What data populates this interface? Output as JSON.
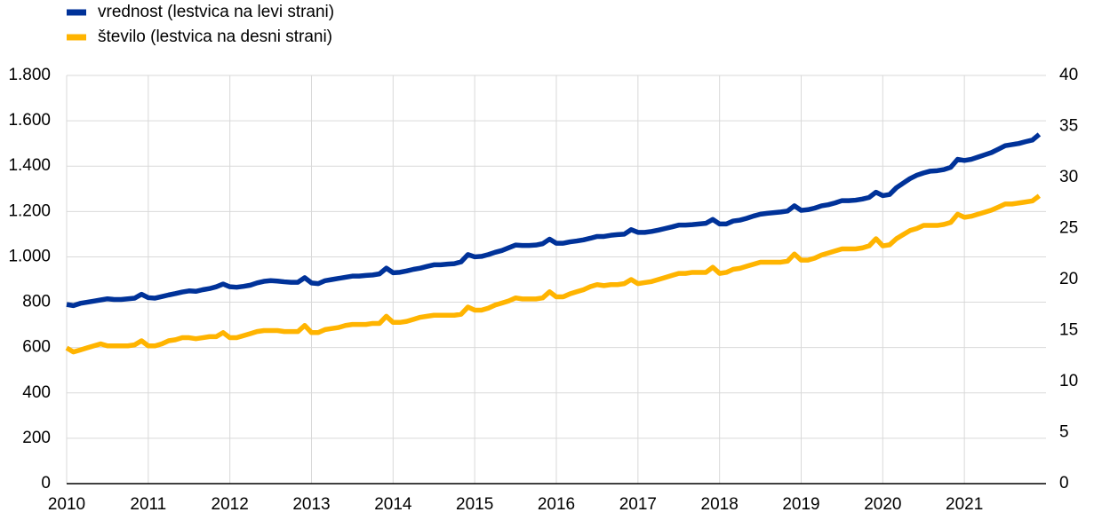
{
  "chart_data": {
    "type": "line",
    "legend": "top-left",
    "grid": true,
    "x": [
      2010,
      2010.083,
      2010.167,
      2010.25,
      2010.333,
      2010.417,
      2010.5,
      2010.583,
      2010.667,
      2010.75,
      2010.833,
      2010.917,
      2011,
      2011.083,
      2011.167,
      2011.25,
      2011.333,
      2011.417,
      2011.5,
      2011.583,
      2011.667,
      2011.75,
      2011.833,
      2011.917,
      2012,
      2012.083,
      2012.167,
      2012.25,
      2012.333,
      2012.417,
      2012.5,
      2012.583,
      2012.667,
      2012.75,
      2012.833,
      2012.917,
      2013,
      2013.083,
      2013.167,
      2013.25,
      2013.333,
      2013.417,
      2013.5,
      2013.583,
      2013.667,
      2013.75,
      2013.833,
      2013.917,
      2014,
      2014.083,
      2014.167,
      2014.25,
      2014.333,
      2014.417,
      2014.5,
      2014.583,
      2014.667,
      2014.75,
      2014.833,
      2014.917,
      2015,
      2015.083,
      2015.167,
      2015.25,
      2015.333,
      2015.417,
      2015.5,
      2015.583,
      2015.667,
      2015.75,
      2015.833,
      2015.917,
      2016,
      2016.083,
      2016.167,
      2016.25,
      2016.333,
      2016.417,
      2016.5,
      2016.583,
      2016.667,
      2016.75,
      2016.833,
      2016.917,
      2017,
      2017.083,
      2017.167,
      2017.25,
      2017.333,
      2017.417,
      2017.5,
      2017.583,
      2017.667,
      2017.75,
      2017.833,
      2017.917,
      2018,
      2018.083,
      2018.167,
      2018.25,
      2018.333,
      2018.417,
      2018.5,
      2018.583,
      2018.667,
      2018.75,
      2018.833,
      2018.917,
      2019,
      2019.083,
      2019.167,
      2019.25,
      2019.333,
      2019.417,
      2019.5,
      2019.583,
      2019.667,
      2019.75,
      2019.833,
      2019.917,
      2020,
      2020.083,
      2020.167,
      2020.25,
      2020.333,
      2020.417,
      2020.5,
      2020.583,
      2020.667,
      2020.75,
      2020.833,
      2020.917,
      2021,
      2021.083,
      2021.167,
      2021.25,
      2021.333,
      2021.417,
      2021.5,
      2021.583,
      2021.667,
      2021.75,
      2021.833,
      2021.917
    ],
    "xlim": [
      2010,
      2022
    ],
    "xticks": [
      2010,
      2011,
      2012,
      2013,
      2014,
      2015,
      2016,
      2017,
      2018,
      2019,
      2020,
      2021
    ],
    "ylim": [
      0,
      1800
    ],
    "yticks": [
      0,
      200,
      400,
      600,
      800,
      {
        "value": 1000,
        "label": "1.000"
      },
      {
        "value": 1200,
        "label": "1.200"
      },
      {
        "value": 1400,
        "label": "1.400"
      },
      {
        "value": 1600,
        "label": "1.600"
      },
      {
        "value": 1800,
        "label": "1.800"
      }
    ],
    "y2lim": [
      0,
      40
    ],
    "y2ticks": [
      0,
      5,
      10,
      15,
      20,
      25,
      30,
      35,
      40
    ],
    "series": [
      {
        "name": "vrednost (lestvica na levi strani)",
        "color": "#003299",
        "values": [
          790,
          785,
          795,
          800,
          805,
          810,
          815,
          812,
          812,
          815,
          818,
          835,
          820,
          818,
          825,
          832,
          838,
          845,
          850,
          848,
          855,
          860,
          868,
          880,
          868,
          866,
          870,
          875,
          885,
          892,
          895,
          893,
          890,
          888,
          888,
          908,
          885,
          882,
          895,
          900,
          905,
          910,
          915,
          915,
          918,
          920,
          925,
          950,
          930,
          932,
          938,
          945,
          950,
          958,
          965,
          965,
          968,
          970,
          978,
          1010,
          1000,
          1002,
          1010,
          1020,
          1028,
          1040,
          1052,
          1050,
          1050,
          1052,
          1058,
          1078,
          1060,
          1060,
          1066,
          1070,
          1075,
          1082,
          1090,
          1090,
          1095,
          1098,
          1100,
          1120,
          1108,
          1108,
          1112,
          1118,
          1125,
          1132,
          1140,
          1140,
          1142,
          1145,
          1148,
          1165,
          1145,
          1145,
          1158,
          1162,
          1170,
          1180,
          1188,
          1192,
          1195,
          1198,
          1202,
          1225,
          1205,
          1208,
          1215,
          1225,
          1230,
          1238,
          1248,
          1248,
          1250,
          1255,
          1262,
          1285,
          1270,
          1275,
          1305,
          1325,
          1345,
          1360,
          1370,
          1378,
          1380,
          1385,
          1395,
          1430,
          1425,
          1430,
          1440,
          1450,
          1460,
          1475,
          1490,
          1495,
          1500,
          1508,
          1515,
          1540
        ]
      },
      {
        "name": "število (lestvica na desni strani)",
        "color": "#ffb400",
        "axis": "y2",
        "values": [
          13.3,
          12.9,
          13.1,
          13.3,
          13.5,
          13.7,
          13.5,
          13.5,
          13.5,
          13.5,
          13.6,
          14.0,
          13.5,
          13.5,
          13.7,
          14.0,
          14.1,
          14.3,
          14.3,
          14.2,
          14.3,
          14.4,
          14.4,
          14.8,
          14.3,
          14.3,
          14.5,
          14.7,
          14.9,
          15.0,
          15.0,
          15.0,
          14.9,
          14.9,
          14.9,
          15.5,
          14.8,
          14.8,
          15.1,
          15.2,
          15.3,
          15.5,
          15.6,
          15.6,
          15.6,
          15.7,
          15.7,
          16.4,
          15.8,
          15.8,
          15.9,
          16.1,
          16.3,
          16.4,
          16.5,
          16.5,
          16.5,
          16.5,
          16.6,
          17.3,
          17.0,
          17.0,
          17.2,
          17.5,
          17.7,
          17.9,
          18.2,
          18.1,
          18.1,
          18.1,
          18.2,
          18.8,
          18.3,
          18.3,
          18.6,
          18.8,
          19.0,
          19.3,
          19.5,
          19.4,
          19.5,
          19.5,
          19.6,
          20.0,
          19.6,
          19.7,
          19.8,
          20.0,
          20.2,
          20.4,
          20.6,
          20.6,
          20.7,
          20.7,
          20.7,
          21.2,
          20.6,
          20.7,
          21.0,
          21.1,
          21.3,
          21.5,
          21.7,
          21.7,
          21.7,
          21.7,
          21.8,
          22.5,
          21.9,
          21.9,
          22.1,
          22.4,
          22.6,
          22.8,
          23.0,
          23.0,
          23.0,
          23.1,
          23.3,
          24.0,
          23.3,
          23.4,
          24.0,
          24.4,
          24.8,
          25.0,
          25.3,
          25.3,
          25.3,
          25.4,
          25.6,
          26.4,
          26.1,
          26.2,
          26.4,
          26.6,
          26.8,
          27.1,
          27.4,
          27.4,
          27.5,
          27.6,
          27.7,
          28.2
        ]
      }
    ]
  }
}
